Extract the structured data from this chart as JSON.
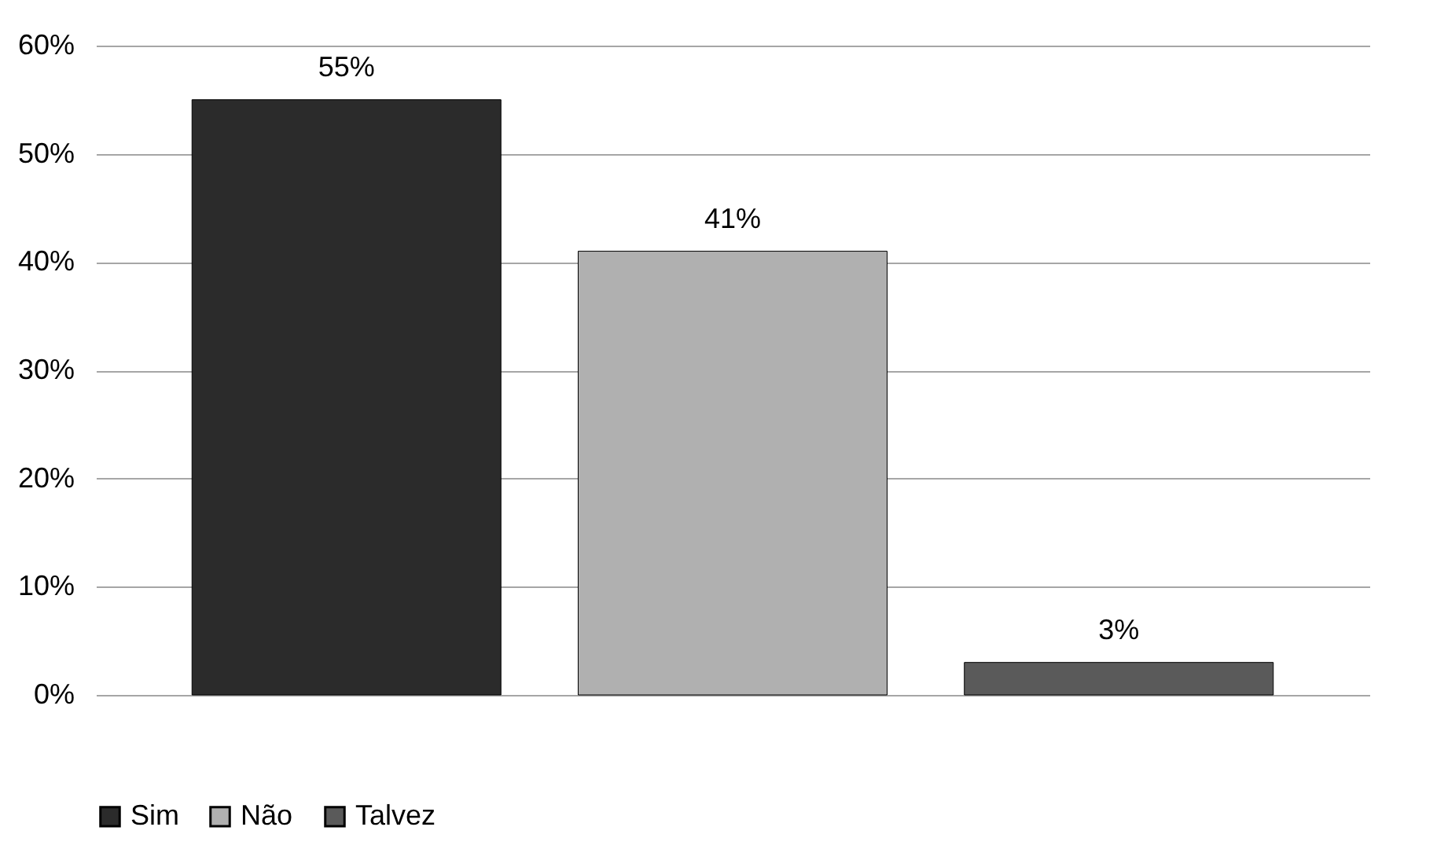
{
  "chart_data": {
    "type": "bar",
    "categories": [
      null
    ],
    "series": [
      {
        "name": "Sim",
        "color": "#2b2b2b",
        "values": [
          55
        ],
        "value_labels": [
          "55%"
        ]
      },
      {
        "name": "Não",
        "color": "#b0b0b0",
        "values": [
          41
        ],
        "value_labels": [
          "41%"
        ]
      },
      {
        "name": "Talvez",
        "color": "#5a5a5a",
        "values": [
          3
        ],
        "value_labels": [
          "3%"
        ]
      }
    ],
    "ylim": [
      0,
      60
    ],
    "yticks": [
      {
        "value": 0,
        "label": "0%"
      },
      {
        "value": 10,
        "label": "10%"
      },
      {
        "value": 20,
        "label": "20%"
      },
      {
        "value": 30,
        "label": "30%"
      },
      {
        "value": 40,
        "label": "40%"
      },
      {
        "value": 50,
        "label": "50%"
      },
      {
        "value": 60,
        "label": "60%"
      }
    ],
    "grid": "y",
    "legend": "bottom"
  }
}
